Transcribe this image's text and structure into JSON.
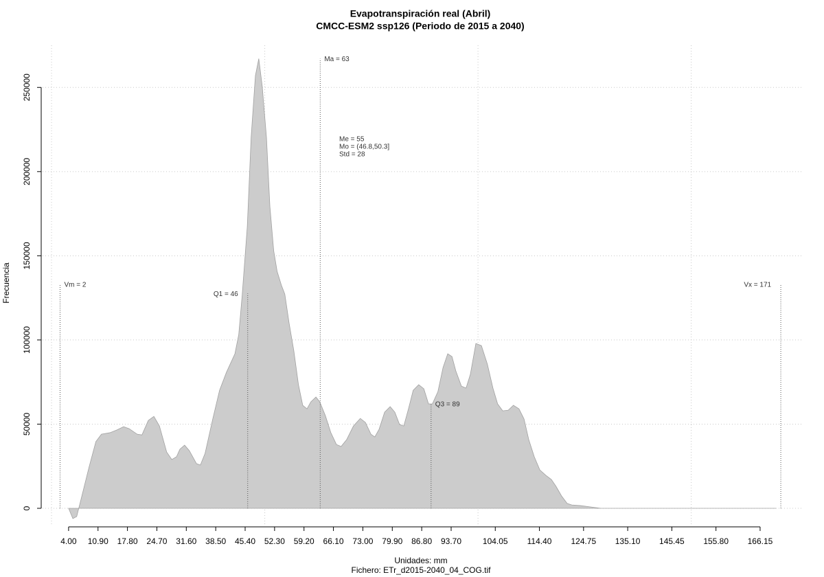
{
  "chart_data": {
    "type": "area",
    "title": "Evapotranspiración real (Abril)",
    "subtitle": "CMCC-ESM2 ssp126 (Periodo de 2015 a 2040)",
    "x_label": "Unidades: mm",
    "caption": "Fichero: ETr_d2015-2040_04_COG.tif",
    "y_label": "Frecuencia",
    "color": "#cccccc",
    "x": [
      4.0,
      5.0,
      5.9,
      7.2,
      8.8,
      10.4,
      11.7,
      13.7,
      15.3,
      16.9,
      18.2,
      20.1,
      21.2,
      22.7,
      24.0,
      25.3,
      27.0,
      28.2,
      29.3,
      30.1,
      31.2,
      32.3,
      34.0,
      34.9,
      36.0,
      37.8,
      39.4,
      41.0,
      43.0,
      43.9,
      44.7,
      45.9,
      46.8,
      47.8,
      48.6,
      49.4,
      50.4,
      51.2,
      52.1,
      52.9,
      53.9,
      54.7,
      55.7,
      56.8,
      57.9,
      58.9,
      59.9,
      60.8,
      62.0,
      62.9,
      64.2,
      65.5,
      66.8,
      67.9,
      69.2,
      70.8,
      72.4,
      73.6,
      74.9,
      75.8,
      76.8,
      78.1,
      79.4,
      80.5,
      81.6,
      82.6,
      83.7,
      84.8,
      86.1,
      87.3,
      88.4,
      89.3,
      90.6,
      91.8,
      92.9,
      93.9,
      94.8,
      96.1,
      97.2,
      98.2,
      99.5,
      100.8,
      102.2,
      103.5,
      104.6,
      105.8,
      107.1,
      108.3,
      109.6,
      110.8,
      111.9,
      113.2,
      114.5,
      115.9,
      117.2,
      118.3,
      119.6,
      120.9,
      122.0,
      124.0,
      126.4,
      128.8,
      148.9,
      169.9
    ],
    "values": [
      0,
      -6100,
      -4900,
      8200,
      24500,
      39600,
      44000,
      44900,
      46500,
      48500,
      47300,
      44000,
      43600,
      52200,
      54600,
      48900,
      33400,
      29000,
      30600,
      35100,
      37500,
      34300,
      26500,
      25700,
      32600,
      53000,
      70100,
      80700,
      91800,
      103200,
      126400,
      167200,
      220200,
      256900,
      267100,
      250800,
      220200,
      179400,
      152900,
      140700,
      132500,
      127200,
      110100,
      93800,
      73400,
      61200,
      59100,
      63200,
      66100,
      63200,
      55100,
      44900,
      37900,
      36700,
      40800,
      48900,
      53400,
      51000,
      44000,
      42400,
      46900,
      57100,
      60400,
      57100,
      49800,
      48900,
      59100,
      70100,
      73400,
      71000,
      62000,
      62000,
      69300,
      83600,
      91800,
      90100,
      81600,
      72600,
      71400,
      79500,
      97900,
      96600,
      85600,
      71400,
      62000,
      57900,
      58300,
      61200,
      59100,
      53000,
      40800,
      30600,
      22800,
      19600,
      17100,
      13000,
      7300,
      2900,
      2000,
      1600,
      800,
      0,
      0,
      0
    ],
    "xlim": [
      -2.1,
      176.3
    ],
    "ylim": [
      -10000,
      275000
    ],
    "xticks": [
      {
        "value": 4,
        "label": "4.00"
      },
      {
        "value": 10.9,
        "label": "10.90"
      },
      {
        "value": 17.8,
        "label": "17.80"
      },
      {
        "value": 24.7,
        "label": "24.70"
      },
      {
        "value": 31.6,
        "label": "31.60"
      },
      {
        "value": 38.5,
        "label": "38.50"
      },
      {
        "value": 45.4,
        "label": "45.40"
      },
      {
        "value": 52.3,
        "label": "52.30"
      },
      {
        "value": 59.2,
        "label": "59.20"
      },
      {
        "value": 66.1,
        "label": "66.10"
      },
      {
        "value": 73,
        "label": "73.00"
      },
      {
        "value": 79.9,
        "label": "79.90"
      },
      {
        "value": 86.8,
        "label": "86.80"
      },
      {
        "value": 93.7,
        "label": "93.70"
      },
      {
        "value": 104.05,
        "label": "104.05"
      },
      {
        "value": 114.4,
        "label": "114.40"
      },
      {
        "value": 124.75,
        "label": "124.75"
      },
      {
        "value": 135.1,
        "label": "135.10"
      },
      {
        "value": 145.45,
        "label": "145.45"
      },
      {
        "value": 155.8,
        "label": "155.80"
      },
      {
        "value": 166.15,
        "label": "166.15"
      }
    ],
    "yticks": [
      0,
      50000,
      100000,
      150000,
      200000,
      250000
    ],
    "xgrid": [
      0,
      50,
      100,
      150
    ],
    "grid": true,
    "annotations": [
      {
        "label": "Vm = 2",
        "x": 2,
        "y": 133000,
        "align": "right"
      },
      {
        "label": "Q1 = 46",
        "x": 46,
        "y": 127600,
        "align": "left"
      },
      {
        "label": "Ma = 63",
        "x": 63,
        "y": 267000,
        "align": "right"
      },
      {
        "label": "Q3 = 89",
        "x": 89,
        "y": 62000,
        "align": "right"
      },
      {
        "label": "Vx = 171",
        "x": 171,
        "y": 133000,
        "align": "left"
      }
    ],
    "stats": [
      "Me = 55",
      "Mo = (46.8,50.3]",
      "Std = 28"
    ]
  }
}
